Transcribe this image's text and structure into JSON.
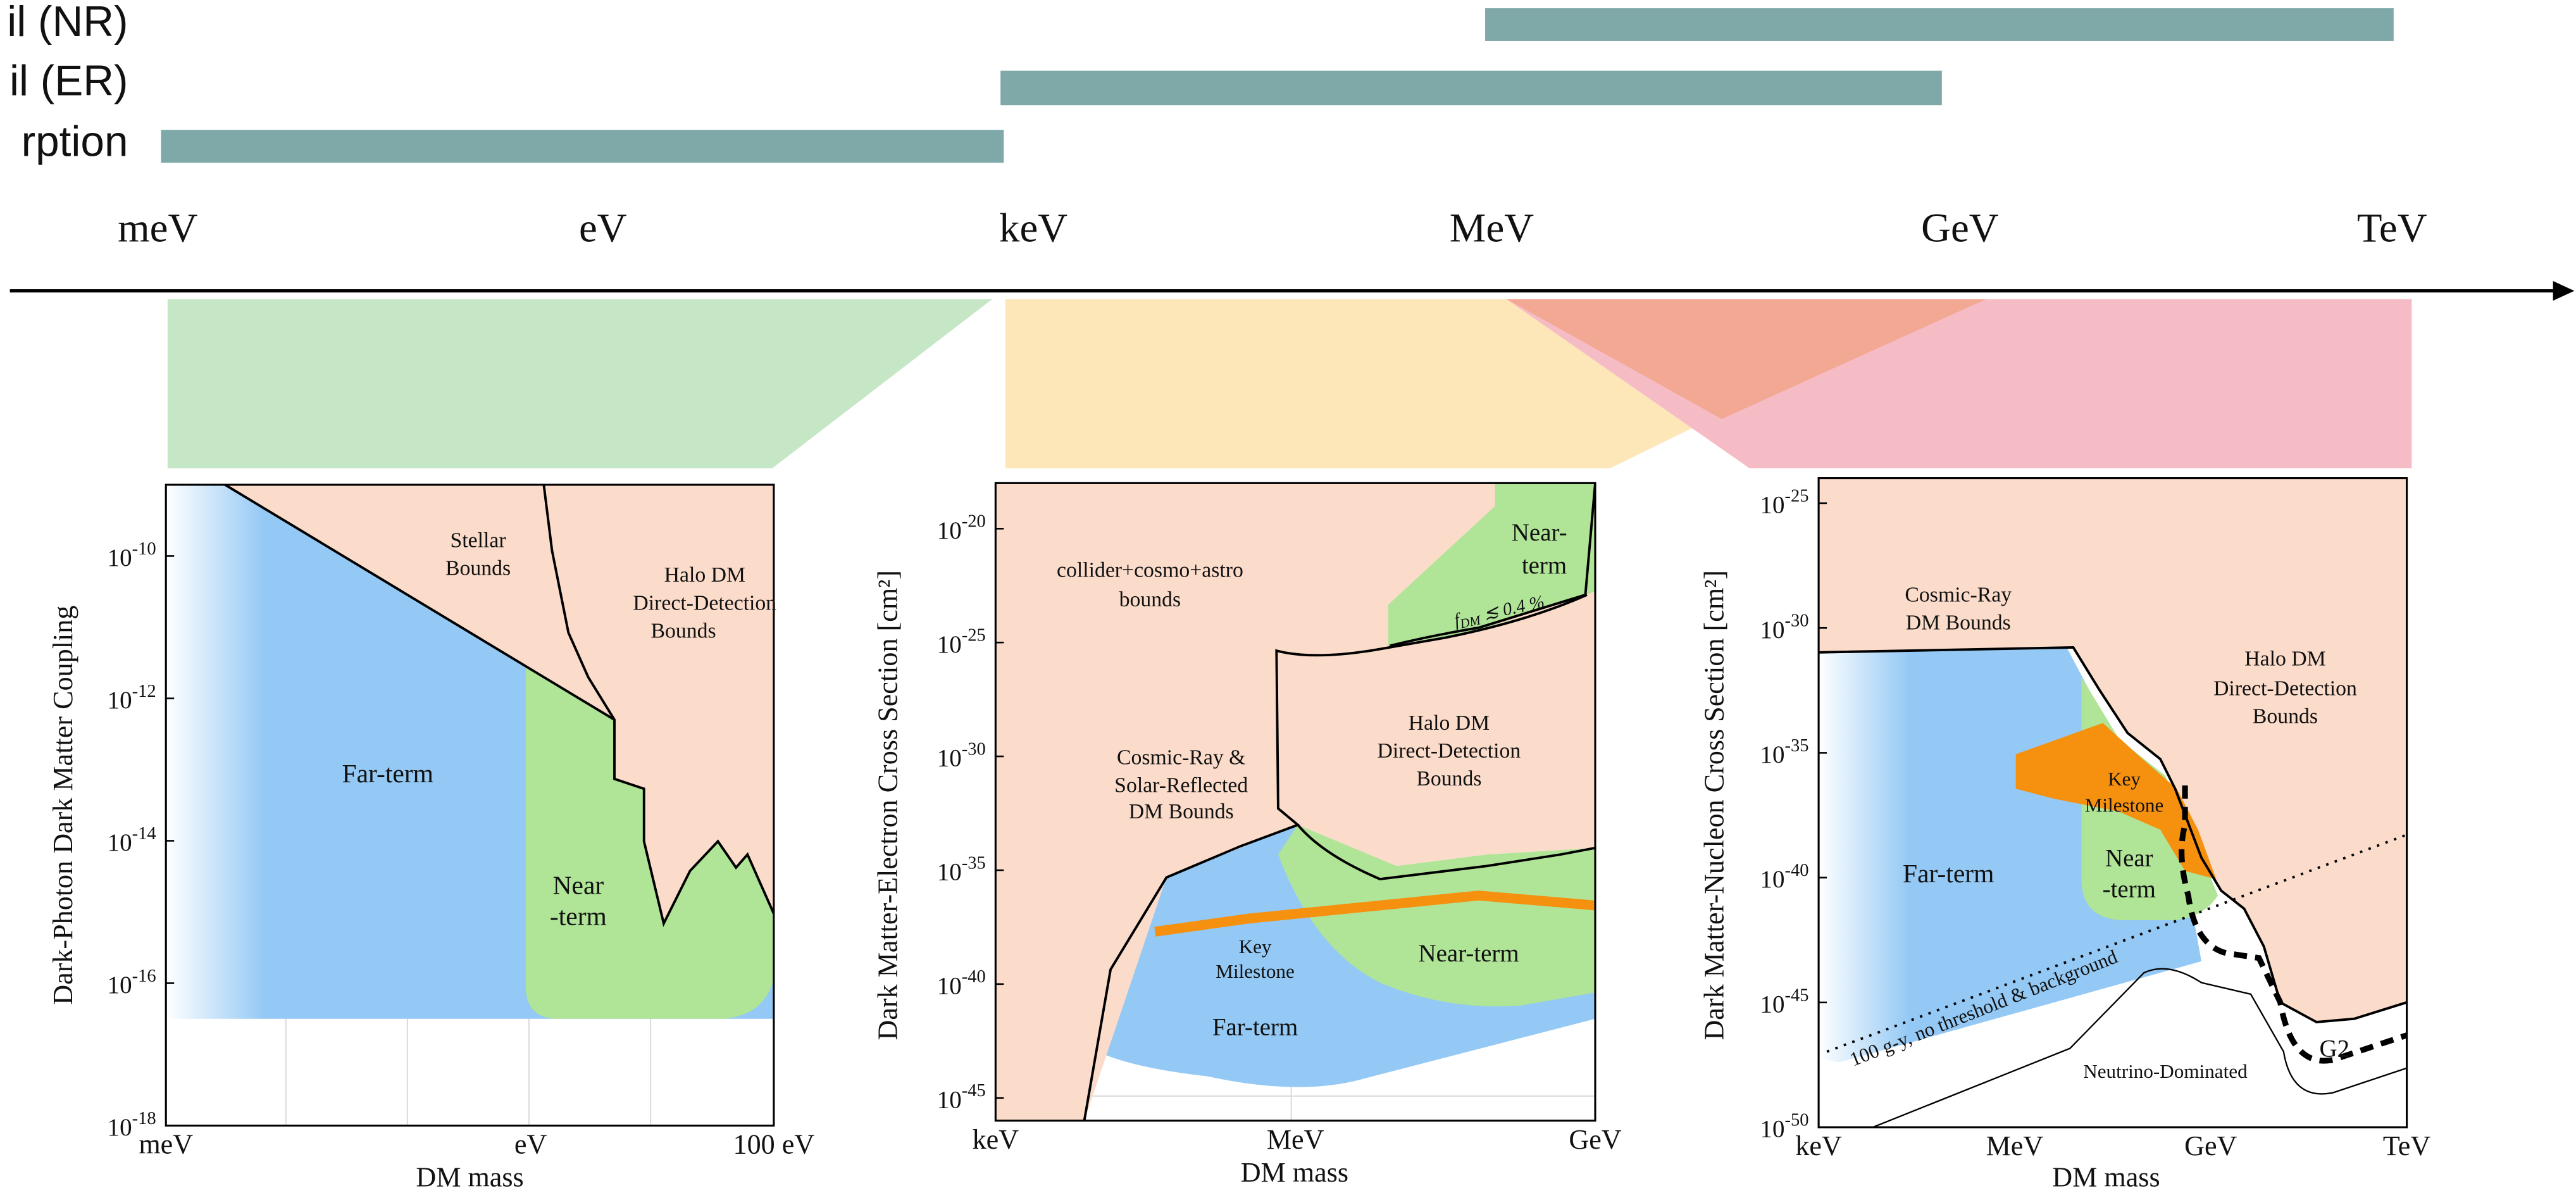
{
  "top_scale": {
    "channels": [
      {
        "label": "il (NR)",
        "from_unit": "MeV",
        "to_unit": "TeV"
      },
      {
        "label": "il (ER)",
        "from_unit": "keV",
        "to_unit": "GeV"
      },
      {
        "label": "rption",
        "from_unit": "meV",
        "to_unit": "keV"
      }
    ],
    "mass_units": [
      "meV",
      "eV",
      "keV",
      "MeV",
      "GeV",
      "TeV"
    ],
    "bar_color": "#7fa9a9"
  },
  "bands": [
    {
      "name": "absorption-band",
      "color": "#c6e7c6"
    },
    {
      "name": "electron-recoil-band",
      "color": "#fde6b8"
    },
    {
      "name": "nuclear-recoil-band",
      "color": "#f6bcc6"
    },
    {
      "name": "overlap-band",
      "color": "#f3a894"
    }
  ],
  "colors": {
    "stellar": "#fbdccb",
    "far_term": "#94c9f5",
    "near_term": "#b0e497",
    "key_milestone": "#f6900f"
  },
  "chart_data": [
    {
      "type": "area",
      "xlabel": "DM mass",
      "ylabel": "Dark-Photon Dark Matter Coupling",
      "x_scale": "log",
      "y_scale": "log",
      "x_unit": "eV",
      "xlim": [
        0.001,
        100
      ],
      "ylim": [
        1e-18,
        1e-09
      ],
      "xticks": [
        {
          "value": 0.001,
          "label": "meV"
        },
        {
          "value": 1,
          "label": "eV"
        },
        {
          "value": 100,
          "label": "100 eV"
        }
      ],
      "yticks": [
        {
          "exp": -10,
          "label": "10",
          "sup": "-10"
        },
        {
          "exp": -12,
          "label": "10",
          "sup": "-12"
        },
        {
          "exp": -14,
          "label": "10",
          "sup": "-14"
        },
        {
          "exp": -16,
          "label": "10",
          "sup": "-16"
        },
        {
          "exp": -18,
          "label": "10",
          "sup": "-18"
        }
      ],
      "regions": [
        {
          "name": "Stellar Bounds",
          "lines": [
            "Stellar",
            "Bounds"
          ]
        },
        {
          "name": "Halo DM Direct-Detection Bounds",
          "lines": [
            "Halo DM",
            "Direct-Detection",
            "Bounds"
          ]
        },
        {
          "name": "Far-term",
          "lines": [
            "Far-term"
          ]
        },
        {
          "name": "Near-term",
          "lines": [
            "Near",
            "-term"
          ]
        }
      ],
      "grid": true
    },
    {
      "type": "area",
      "xlabel": "DM mass",
      "ylabel": "Dark Matter-Electron Cross Section [cm²]",
      "x_scale": "log",
      "y_scale": "log",
      "x_unit": "eV",
      "xlim": [
        1000,
        1000000000.0
      ],
      "ylim": [
        1e-46,
        1e-18
      ],
      "xticks": [
        {
          "value": 1000,
          "label": "keV"
        },
        {
          "value": 1000000.0,
          "label": "MeV"
        },
        {
          "value": 1000000000.0,
          "label": "GeV"
        }
      ],
      "yticks": [
        {
          "exp": -20,
          "label": "10",
          "sup": "-20"
        },
        {
          "exp": -25,
          "label": "10",
          "sup": "-25"
        },
        {
          "exp": -30,
          "label": "10",
          "sup": "-30"
        },
        {
          "exp": -35,
          "label": "10",
          "sup": "-35"
        },
        {
          "exp": -40,
          "label": "10",
          "sup": "-40"
        },
        {
          "exp": -45,
          "label": "10",
          "sup": "-45"
        }
      ],
      "regions": [
        {
          "name": "collider+cosmo+astro bounds",
          "lines": [
            "collider+cosmo+astro",
            "bounds"
          ]
        },
        {
          "name": "Cosmic-Ray & Solar-Reflected DM Bounds",
          "lines": [
            "Cosmic-Ray &",
            "Solar-Reflected",
            "DM Bounds"
          ]
        },
        {
          "name": "Halo DM Direct-Detection Bounds",
          "lines": [
            "Halo DM",
            "Direct-Detection",
            "Bounds"
          ]
        },
        {
          "name": "Near-term (f_DM ≲ 0.4%)",
          "lines": [
            "Near-",
            "term"
          ],
          "note": "f",
          "note_sub": "DM",
          "note_rest": " ≲ 0.4 %"
        },
        {
          "name": "Key Milestone",
          "lines": [
            "Key",
            "Milestone"
          ]
        },
        {
          "name": "Near-term",
          "lines": [
            "Near-term"
          ]
        },
        {
          "name": "Far-term",
          "lines": [
            "Far-term"
          ]
        }
      ],
      "grid": true
    },
    {
      "type": "area",
      "xlabel": "DM mass",
      "ylabel": "Dark Matter-Nucleon Cross Section [cm²]",
      "x_scale": "log",
      "y_scale": "log",
      "x_unit": "eV",
      "xlim": [
        1000,
        1000000000000.0
      ],
      "ylim": [
        1e-50,
        1e-24
      ],
      "xticks": [
        {
          "value": 1000,
          "label": "keV"
        },
        {
          "value": 1000000.0,
          "label": "MeV"
        },
        {
          "value": 1000000000.0,
          "label": "GeV"
        },
        {
          "value": 1000000000000.0,
          "label": "TeV"
        }
      ],
      "yticks": [
        {
          "exp": -25,
          "label": "10",
          "sup": "-25"
        },
        {
          "exp": -30,
          "label": "10",
          "sup": "-30"
        },
        {
          "exp": -35,
          "label": "10",
          "sup": "-35"
        },
        {
          "exp": -40,
          "label": "10",
          "sup": "-40"
        },
        {
          "exp": -45,
          "label": "10",
          "sup": "-45"
        },
        {
          "exp": -50,
          "label": "10",
          "sup": "-50"
        }
      ],
      "regions": [
        {
          "name": "Cosmic-Ray DM Bounds",
          "lines": [
            "Cosmic-Ray",
            "DM Bounds"
          ]
        },
        {
          "name": "Halo DM Direct-Detection Bounds",
          "lines": [
            "Halo DM",
            "Direct-Detection",
            "Bounds"
          ]
        },
        {
          "name": "Key Milestone",
          "lines": [
            "Key",
            "Milestone"
          ]
        },
        {
          "name": "Far-term",
          "lines": [
            "Far-term"
          ]
        },
        {
          "name": "Near-term",
          "lines": [
            "Near",
            "-term"
          ]
        },
        {
          "name": "G2",
          "lines": [
            "G2"
          ]
        },
        {
          "name": "Neutrino-Dominated",
          "lines": [
            "Neutrino-Dominated"
          ]
        }
      ],
      "annotations": [
        "100 g-y, no threshold & background"
      ],
      "grid": false
    }
  ]
}
